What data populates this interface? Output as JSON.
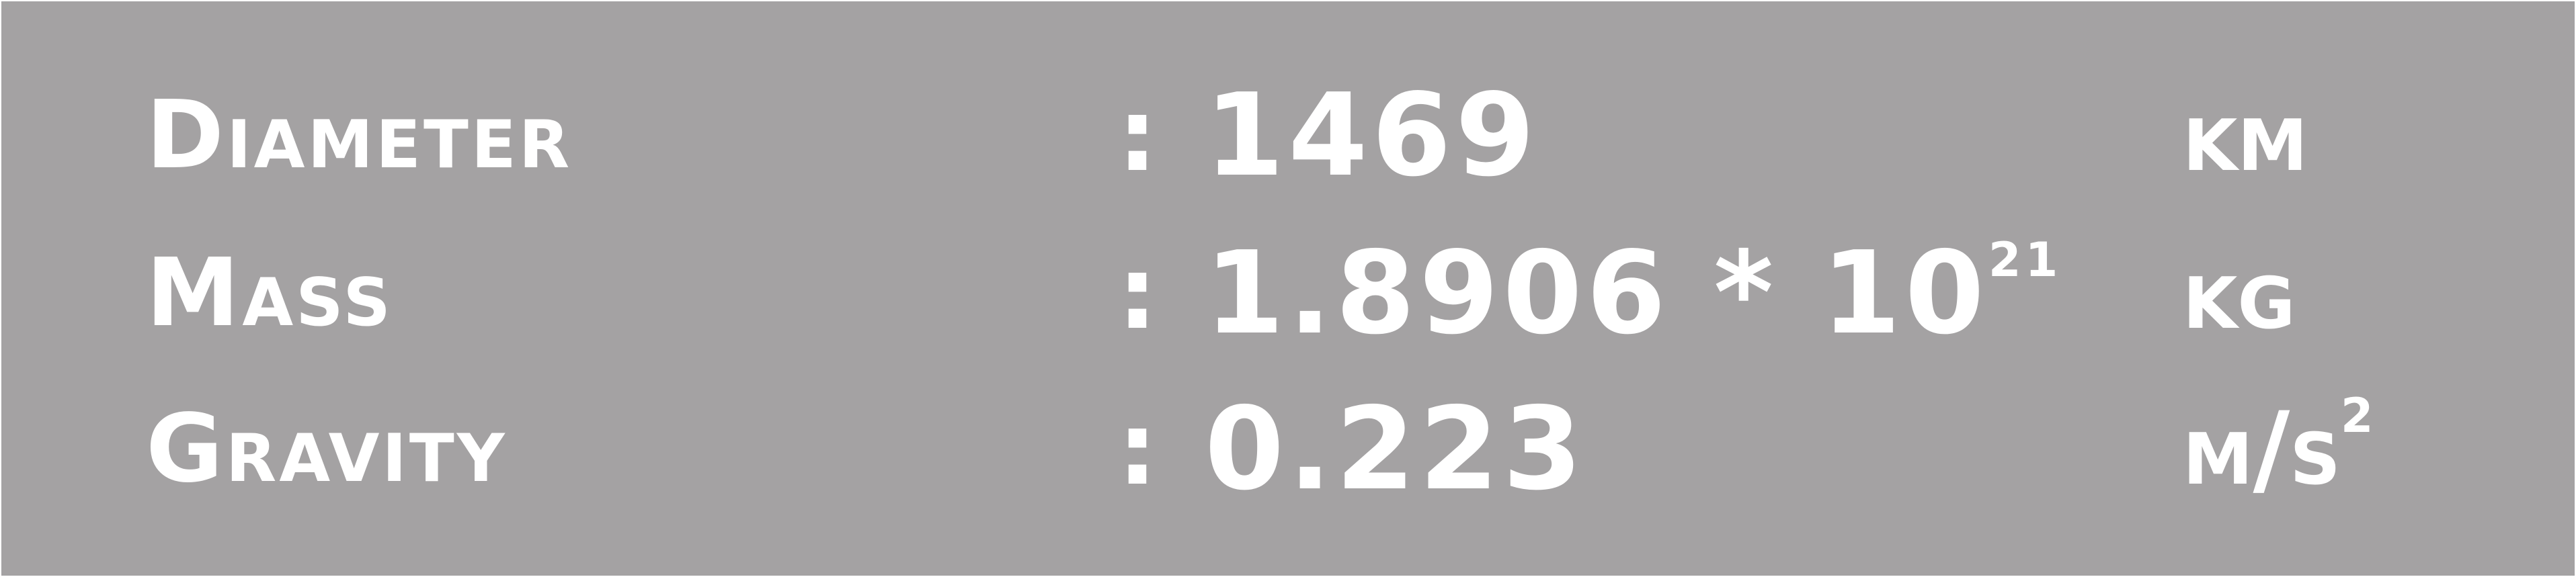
{
  "rows": [
    {
      "label": "Diameter",
      "separator": ":",
      "value": "1469",
      "exponent": "",
      "unit": "km",
      "unit_exponent": ""
    },
    {
      "label": "Mass",
      "separator": ":",
      "value": "1.8906 * 10",
      "exponent": "21",
      "unit": "kg",
      "unit_exponent": ""
    },
    {
      "label": "Gravity",
      "separator": ":",
      "value": "0.223",
      "exponent": "",
      "unit": "m/s",
      "unit_exponent": "2"
    }
  ],
  "colors": {
    "background": "#a4a2a3",
    "text": "#ffffff"
  }
}
